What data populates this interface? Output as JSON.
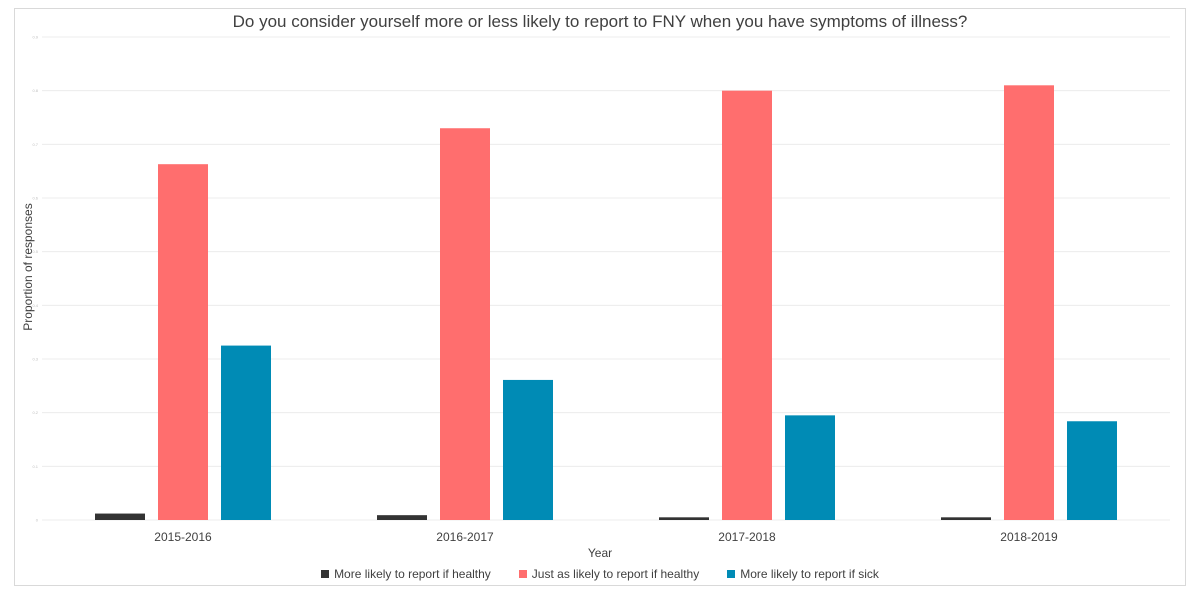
{
  "chart_data": {
    "type": "bar",
    "title": "Do you consider yourself more or less likely to report to FNY when you have symptoms of illness?",
    "xlabel": "Year",
    "ylabel": "Proportion of responses",
    "categories": [
      "2015-2016",
      "2016-2017",
      "2017-2018",
      "2018-2019"
    ],
    "series": [
      {
        "name": "More likely to report if healthy",
        "color": "#333333",
        "values": [
          0.012,
          0.009,
          0.005,
          0.005
        ]
      },
      {
        "name": "Just as likely to report if healthy",
        "color": "#ff6e6e",
        "values": [
          0.663,
          0.73,
          0.8,
          0.81
        ]
      },
      {
        "name": "More likely to report if sick",
        "color": "#008bb5",
        "values": [
          0.325,
          0.261,
          0.195,
          0.184
        ]
      }
    ],
    "ylim": [
      0,
      0.9
    ],
    "yticks": [
      0,
      0.1,
      0.2,
      0.3,
      0.4,
      0.5,
      0.6,
      0.7,
      0.8,
      0.9
    ],
    "ytick_labels": [
      "0",
      "0.1",
      "0.2",
      "0.3",
      "0.4",
      "0.5",
      "0.6",
      "0.7",
      "0.8",
      "0.9"
    ],
    "grid": true,
    "legend_position": "bottom"
  }
}
